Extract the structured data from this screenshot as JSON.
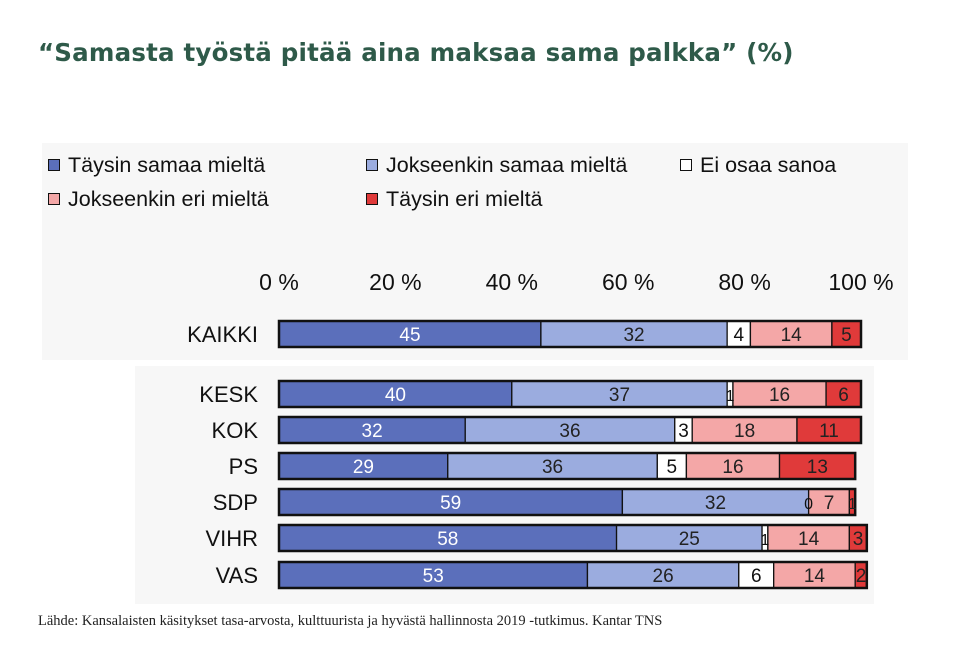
{
  "title": "“Samasta työstä pitää aina maksaa sama palkka” (%)",
  "source": "Lähde: Kansalaisten käsitykset tasa-arvosta, kulttuurista ja hyvästä hallinnosta 2019 -tutkimus. Kantar TNS",
  "chart_data": {
    "type": "bar",
    "orientation": "horizontal",
    "stacked": true,
    "title": "“Samasta työstä pitää aina maksaa sama palkka” (%)",
    "xlim": [
      0,
      100
    ],
    "x_ticks": [
      "0 %",
      "20 %",
      "40 %",
      "60 %",
      "80 %",
      "100 %"
    ],
    "x_tick_values": [
      0,
      20,
      40,
      60,
      80,
      100
    ],
    "x_axis_position": "top",
    "grid": false,
    "legend_position": "top",
    "categories": [
      "KAIKKI",
      "KESK",
      "KOK",
      "PS",
      "SDP",
      "VIHR",
      "VAS"
    ],
    "series": [
      {
        "name": "Täysin samaa mieltä",
        "color": "#5b6fbb",
        "label_color": "#ffffff",
        "values": [
          45,
          40,
          32,
          29,
          59,
          58,
          53
        ]
      },
      {
        "name": "Jokseenkin samaa mieltä",
        "color": "#9bacdf",
        "label_color": "#222222",
        "values": [
          32,
          37,
          36,
          36,
          32,
          25,
          26
        ]
      },
      {
        "name": "Ei osaa sanoa",
        "color": "#ffffff",
        "label_color": "#111111",
        "values": [
          4,
          1,
          3,
          5,
          0,
          1,
          6
        ]
      },
      {
        "name": "Jokseenkin eri mieltä",
        "color": "#f4a7a7",
        "label_color": "#222222",
        "values": [
          14,
          16,
          18,
          16,
          7,
          14,
          14
        ]
      },
      {
        "name": "Täysin eri mieltä",
        "color": "#e03a3a",
        "label_color": "#222222",
        "values": [
          5,
          6,
          11,
          13,
          1,
          3,
          2
        ]
      }
    ]
  }
}
